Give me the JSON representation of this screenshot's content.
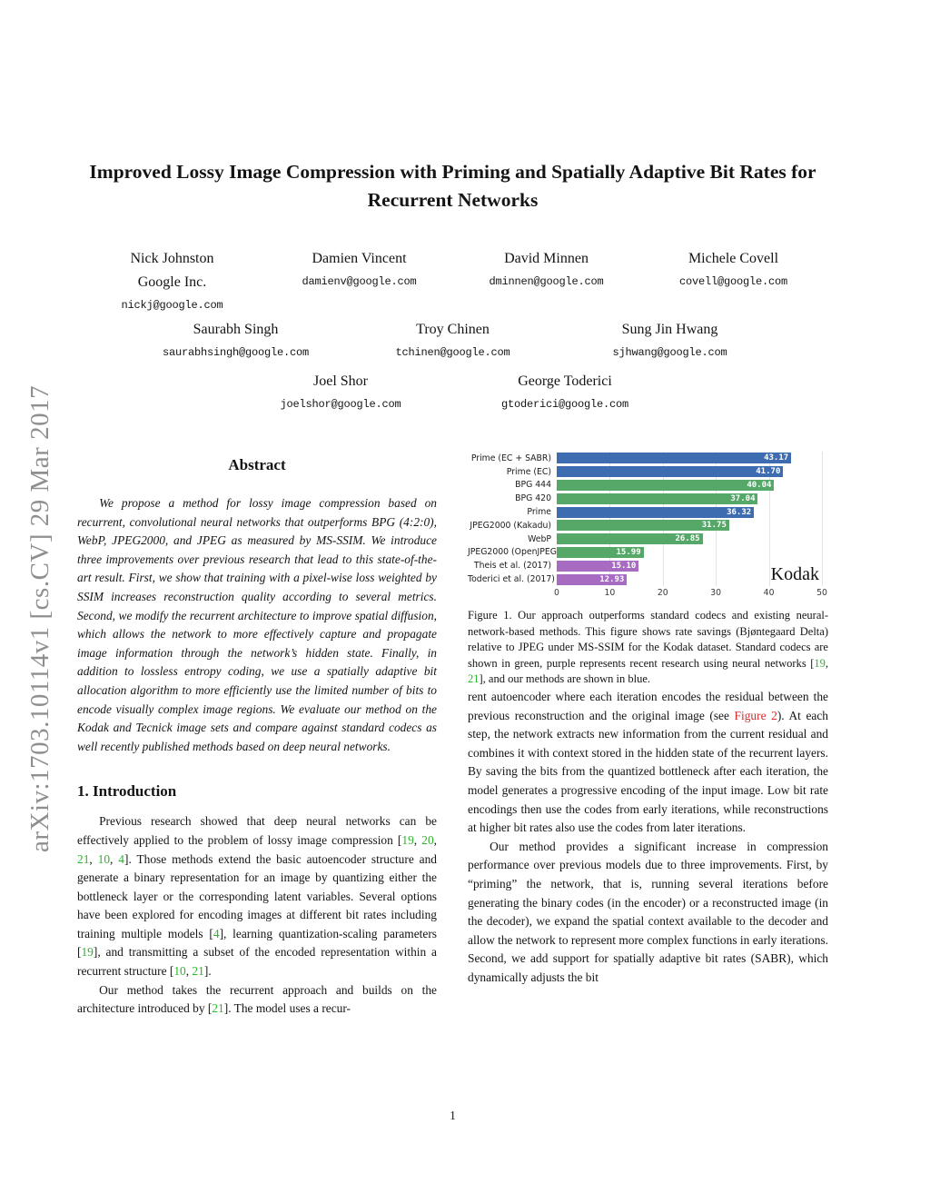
{
  "watermark": {
    "text": "arXiv:1703.10114v1  [cs.CV]  29 Mar 2017"
  },
  "title": "Improved Lossy Image Compression with Priming and Spatially Adaptive Bit Rates for Recurrent Networks",
  "authors": {
    "rows": [
      [
        {
          "name": "Nick Johnston",
          "affiliation": "Google Inc.",
          "email": "nickj@google.com"
        },
        {
          "name": "Damien Vincent",
          "email": "damienv@google.com"
        },
        {
          "name": "David Minnen",
          "email": "dminnen@google.com"
        },
        {
          "name": "Michele Covell",
          "email": "covell@google.com"
        }
      ],
      [
        {
          "name": "Saurabh Singh",
          "email": "saurabhsingh@google.com"
        },
        {
          "name": "Troy Chinen",
          "email": "tchinen@google.com"
        },
        {
          "name": "Sung Jin Hwang",
          "email": "sjhwang@google.com"
        }
      ],
      [
        {
          "name": "Joel Shor",
          "email": "joelshor@google.com"
        },
        {
          "name": "George Toderici",
          "email": "gtoderici@google.com"
        }
      ]
    ]
  },
  "abstract": {
    "heading": "Abstract",
    "text": "We propose a method for lossy image compression based on recurrent, convolutional neural networks that outperforms BPG (4:2:0), WebP, JPEG2000, and JPEG as measured by MS-SSIM. We introduce three improvements over previous research that lead to this state-of-the-art result. First, we show that training with a pixel-wise loss weighted by SSIM increases reconstruction quality according to several metrics. Second, we modify the recurrent architecture to improve spatial diffusion, which allows the network to more effectively capture and propagate image information through the network’s hidden state. Finally, in addition to lossless entropy coding, we use a spatially adaptive bit allocation algorithm to more efficiently use the limited number of bits to encode visually complex image regions. We evaluate our method on the Kodak and Tecnick image sets and compare against standard codecs as well recently published methods based on deep neural networks."
  },
  "introduction": {
    "heading": "1. Introduction",
    "p1": [
      {
        "t": "Previous research showed that deep neural networks can be effectively applied to the problem of lossy image compression ["
      },
      {
        "t": "19",
        "c": "cite"
      },
      {
        "t": ", "
      },
      {
        "t": "20",
        "c": "cite"
      },
      {
        "t": ", "
      },
      {
        "t": "21",
        "c": "cite"
      },
      {
        "t": ", "
      },
      {
        "t": "10",
        "c": "cite"
      },
      {
        "t": ", "
      },
      {
        "t": "4",
        "c": "cite"
      },
      {
        "t": "]. Those methods extend the basic autoencoder structure and generate a binary representation for an image by quantizing either the bottleneck layer or the corresponding latent variables. Several options have been explored for encoding images at different bit rates including training multiple models ["
      },
      {
        "t": "4",
        "c": "cite"
      },
      {
        "t": "], learning quantization-scaling parameters ["
      },
      {
        "t": "19",
        "c": "cite"
      },
      {
        "t": "], and transmitting a subset of the encoded representation within a recurrent structure ["
      },
      {
        "t": "10",
        "c": "cite"
      },
      {
        "t": ", "
      },
      {
        "t": "21",
        "c": "cite"
      },
      {
        "t": "]."
      }
    ],
    "p2": [
      {
        "t": "Our method takes the recurrent approach and builds on the architecture introduced by ["
      },
      {
        "t": "21",
        "c": "cite"
      },
      {
        "t": "]. The model uses a recur-"
      }
    ]
  },
  "right_column": {
    "p1": [
      {
        "t": "rent autoencoder where each iteration encodes the residual between the previous reconstruction and the original image (see "
      },
      {
        "t": "Figure 2",
        "c": "figref"
      },
      {
        "t": ").  At each step, the network extracts new information from the current residual and combines it with context stored in the hidden state of the recurrent layers. By saving the bits from the quantized bottleneck after each iteration, the model generates a progressive encoding of the input image. Low bit rate encodings then use the codes from early iterations, while reconstructions at higher bit rates also use the codes from later iterations."
      }
    ],
    "p2": [
      {
        "t": "Our method provides a significant increase in compression performance over previous models due to three improvements. First, by “priming” the network, that is, running several iterations before generating the binary codes (in the encoder) or a reconstructed image (in the decoder), we expand the spatial context available to the decoder and allow the network to represent more complex functions in early iterations. Second, we add support for spatially adaptive bit rates (SABR), which dynamically adjusts the bit"
      }
    ]
  },
  "figure": {
    "caption": [
      {
        "t": "Figure 1. Our approach outperforms standard codecs and existing neural-network-based methods. This figure shows rate savings (Bjøntegaard Delta) relative to JPEG under MS-SSIM for the Kodak dataset. Standard codecs are shown in green, purple represents recent research using neural networks ["
      },
      {
        "t": "19",
        "c": "cite"
      },
      {
        "t": ", "
      },
      {
        "t": "21",
        "c": "cite"
      },
      {
        "t": "], and our methods are shown in blue."
      }
    ]
  },
  "chart_data": {
    "type": "bar",
    "orientation": "horizontal",
    "title": "",
    "xlabel": "",
    "ylabel": "",
    "dataset_label": "Kodak",
    "xlim": [
      0,
      50
    ],
    "xticks": [
      0,
      10,
      20,
      30,
      40,
      50
    ],
    "grid": true,
    "categories": [
      "Prime (EC + SABR)",
      "Prime (EC)",
      "BPG 444",
      "BPG 420",
      "Prime",
      "JPEG2000 (Kakadu)",
      "WebP",
      "JPEG2000 (OpenJPEG)",
      "Theis et al. (2017)",
      "Toderici et al. (2017)"
    ],
    "values": [
      43.17,
      41.7,
      40.04,
      37.04,
      36.32,
      31.75,
      26.85,
      15.99,
      15.1,
      12.93
    ],
    "groups": [
      "ours",
      "ours",
      "codec",
      "codec",
      "ours",
      "codec",
      "codec",
      "codec",
      "neural",
      "neural"
    ],
    "colors": {
      "ours": "#3e6cb0",
      "codec": "#55a868",
      "neural": "#a76bc2"
    },
    "color_legend": {
      "ours": "blue",
      "codec": "green",
      "neural": "purple"
    }
  },
  "page": {
    "number": "1"
  }
}
